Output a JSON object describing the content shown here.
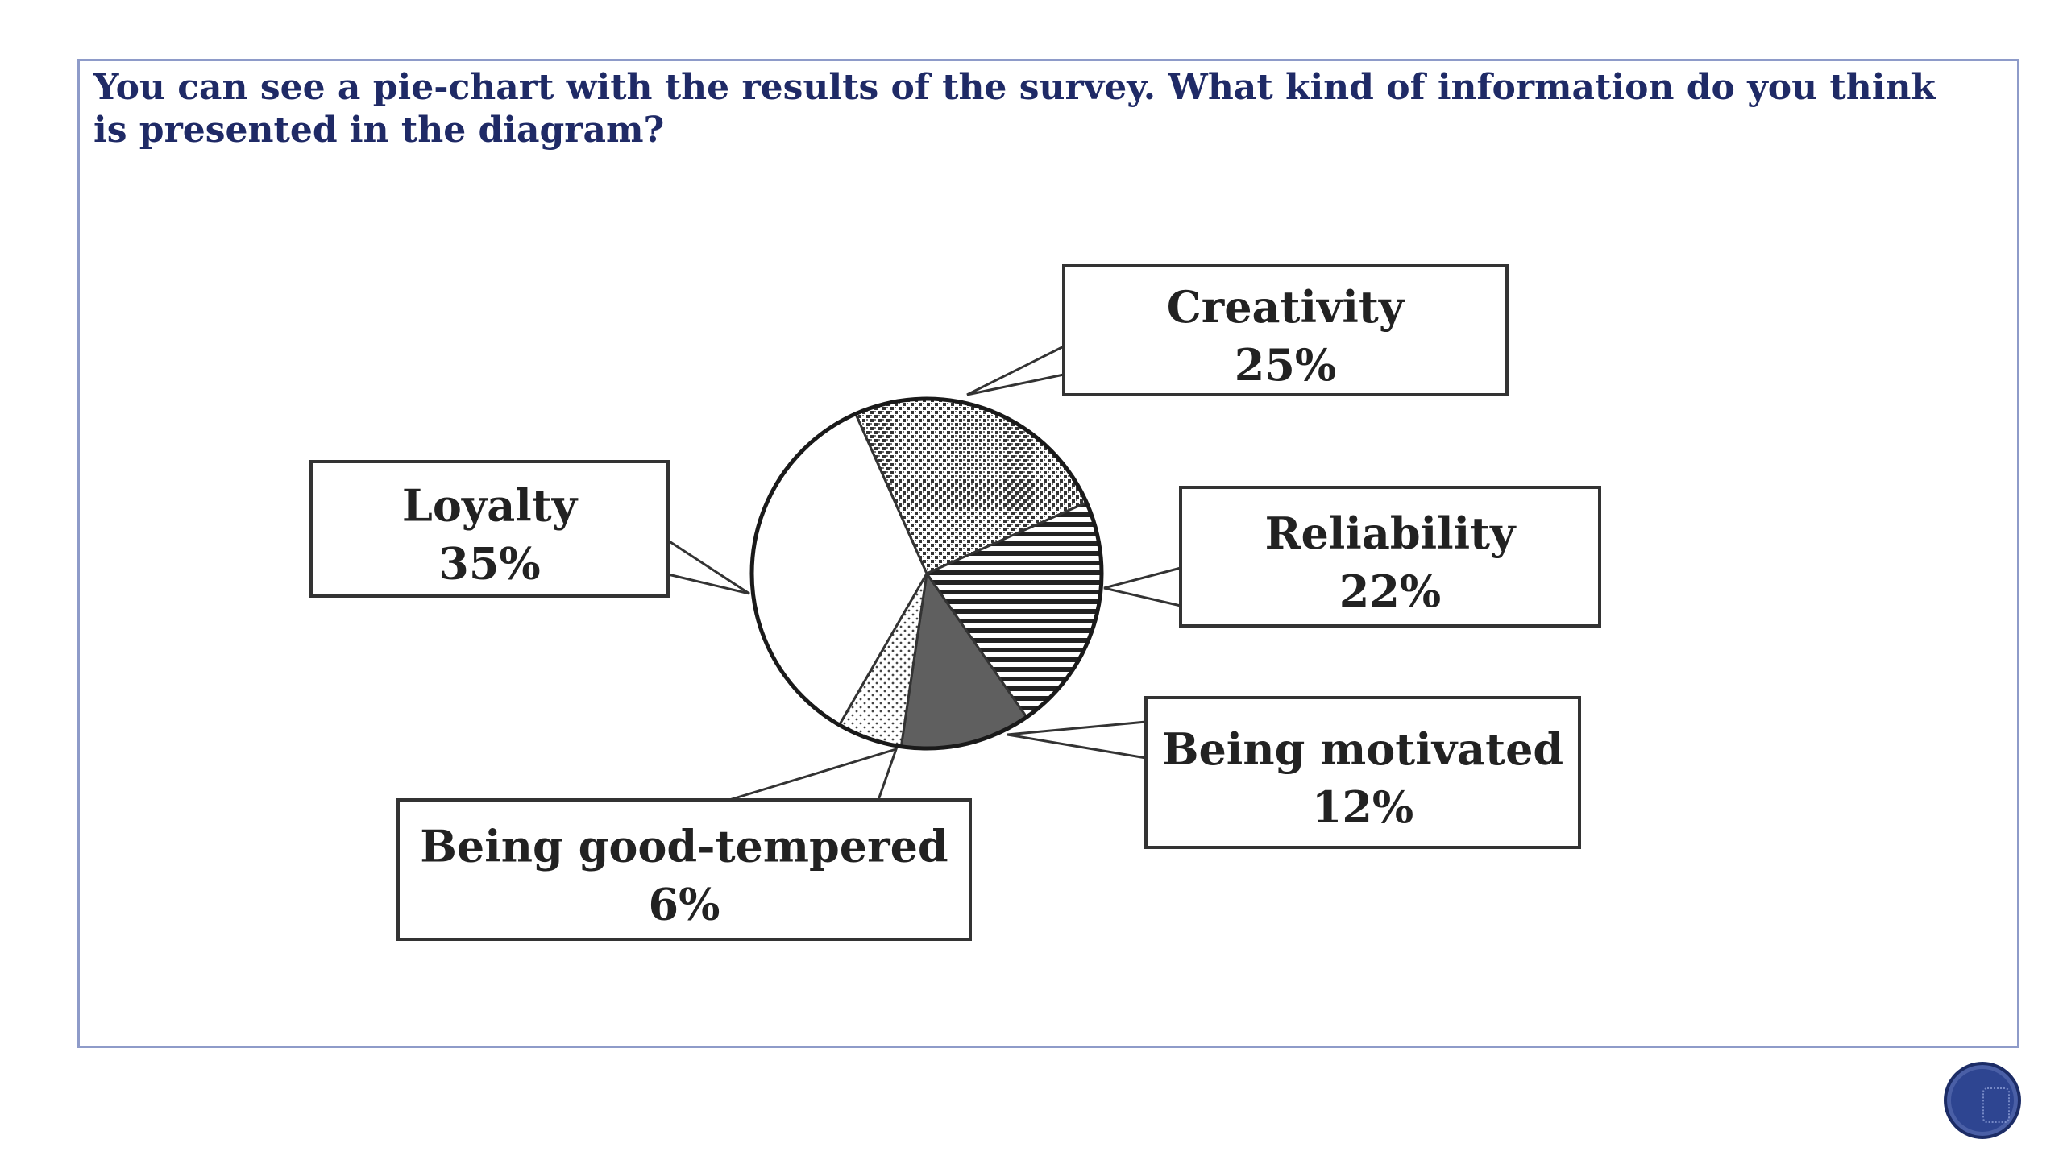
{
  "slide": {
    "question": "You can see a pie-chart with the results of the survey. What kind of information do you think is presented in the diagram?",
    "colors": {
      "text": "#1f2a66",
      "frame": "#8e9bc9",
      "nav_button": "#2e4591",
      "chart_ink": "#333333"
    },
    "nav_icon": "circle-nav-icon"
  },
  "chart_data": {
    "type": "pie",
    "title": "",
    "slices": [
      {
        "label": "Creativity",
        "value": 25,
        "value_label": "25%",
        "pattern": "crosshatch"
      },
      {
        "label": "Reliability",
        "value": 22,
        "value_label": "22%",
        "pattern": "horizontal-lines"
      },
      {
        "label": "Being motivated",
        "value": 12,
        "value_label": "12%",
        "pattern": "dark-solid"
      },
      {
        "label": "Being good-tempered",
        "value": 6,
        "value_label": "6%",
        "pattern": "dots"
      },
      {
        "label": "Loyalty",
        "value": 35,
        "value_label": "35%",
        "pattern": "white"
      }
    ],
    "legend": "callout-boxes",
    "start_angle_deg": -24
  }
}
